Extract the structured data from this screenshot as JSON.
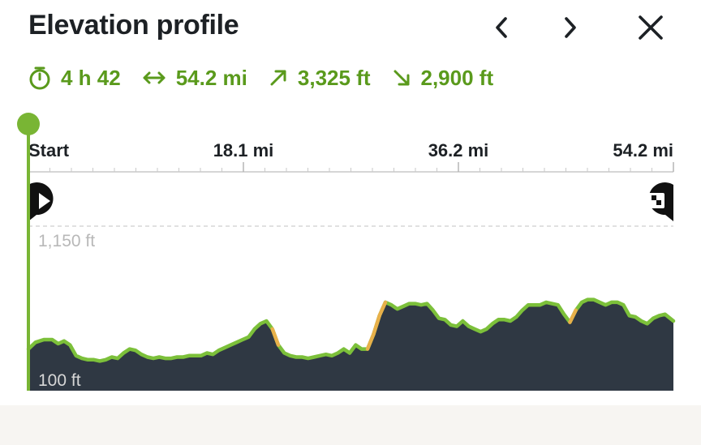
{
  "header": {
    "title": "Elevation profile",
    "icons": {
      "prev": "chevron-left-icon",
      "next": "chevron-right-icon",
      "close": "close-icon"
    }
  },
  "stats": {
    "duration": "4 h 42",
    "distance": "54.2 mi",
    "ascent": "3,325 ft",
    "descent": "2,900 ft",
    "icons": [
      "stopwatch-icon",
      "horizontal-arrows-icon",
      "arrow-up-right-icon",
      "arrow-down-right-icon"
    ],
    "color": "#5a9a1c"
  },
  "chart_data": {
    "type": "area",
    "x_ticks": [
      "Start",
      "18.1 mi",
      "36.2 mi",
      "54.2 mi"
    ],
    "y_ticks": [
      "1,150 ft",
      "100 ft"
    ],
    "xlim": [
      0,
      54.2
    ],
    "ylim": [
      100,
      1150
    ],
    "grid": true,
    "colors": {
      "fill": "#2f3843",
      "line": "#7cc03a",
      "steep": "#e8b04a",
      "axis": "#79b534"
    },
    "start_icon": "play-marker-icon",
    "end_icon": "finish-flag-marker-icon",
    "x": [
      0,
      0.6,
      1.3,
      2,
      2.5,
      3,
      3.5,
      4,
      4.5,
      5,
      5.5,
      6,
      6.5,
      7,
      7.5,
      8,
      8.5,
      9,
      9.5,
      10,
      10.5,
      11,
      11.5,
      12,
      12.5,
      13,
      13.5,
      14,
      14.5,
      15,
      15.5,
      16,
      16.5,
      17,
      17.5,
      18,
      18.5,
      19,
      19.5,
      20,
      20.5,
      21,
      21.5,
      22,
      22.5,
      23,
      23.5,
      24,
      24.5,
      25,
      25.5,
      26,
      26.5,
      27,
      27.5,
      28,
      28.5,
      29,
      29.5,
      30,
      30.5,
      31,
      31.5,
      32,
      32.5,
      33,
      33.5,
      34,
      34.5,
      35,
      35.5,
      36,
      36.5,
      37,
      37.5,
      38,
      38.5,
      39,
      39.5,
      40,
      40.5,
      41,
      41.5,
      42,
      42.5,
      43,
      43.5,
      44,
      44.5,
      45,
      45.5,
      46,
      46.5,
      47,
      47.5,
      48,
      48.5,
      49,
      49.5,
      50,
      50.5,
      51,
      51.5,
      52,
      52.5,
      53,
      53.5,
      54.2
    ],
    "y": [
      230,
      280,
      300,
      300,
      270,
      290,
      260,
      180,
      160,
      150,
      150,
      140,
      150,
      170,
      160,
      200,
      230,
      220,
      190,
      170,
      160,
      170,
      160,
      160,
      170,
      170,
      180,
      180,
      180,
      200,
      190,
      220,
      240,
      260,
      280,
      300,
      320,
      380,
      420,
      440,
      380,
      260,
      200,
      180,
      170,
      170,
      160,
      170,
      180,
      190,
      180,
      200,
      230,
      200,
      260,
      230,
      230,
      340,
      480,
      580,
      560,
      530,
      550,
      570,
      570,
      560,
      570,
      520,
      460,
      450,
      410,
      400,
      440,
      400,
      380,
      360,
      380,
      420,
      450,
      450,
      440,
      470,
      520,
      560,
      560,
      560,
      580,
      570,
      560,
      490,
      430,
      520,
      580,
      600,
      600,
      580,
      560,
      580,
      580,
      560,
      480,
      470,
      440,
      420,
      460,
      480,
      490,
      440
    ]
  },
  "footer": {}
}
